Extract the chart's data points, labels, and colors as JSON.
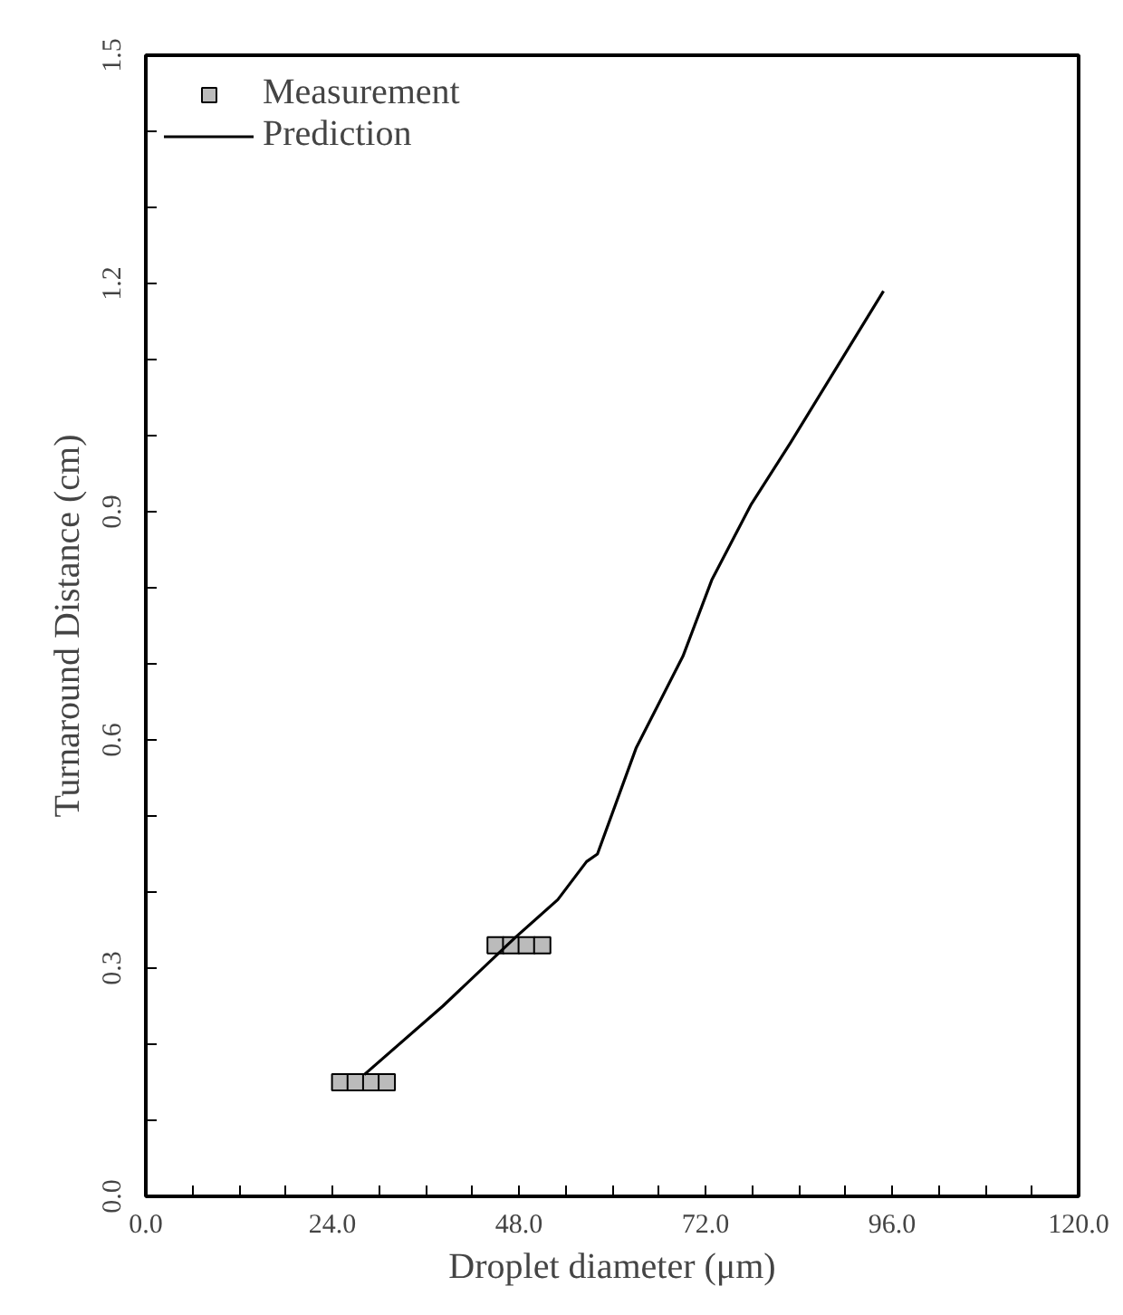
{
  "chart_data": {
    "type": "line",
    "xlabel": "Droplet diameter (μm)",
    "ylabel": "Turnaround Distance (cm)",
    "series": [
      {
        "name": "Measurement",
        "type": "scatter",
        "marker": "square",
        "color": "#000000",
        "x": [
          25,
          27,
          29,
          31,
          45,
          47,
          49,
          51
        ],
        "values": [
          0.15,
          0.15,
          0.15,
          0.15,
          0.33,
          0.33,
          0.33,
          0.33
        ]
      },
      {
        "name": "Prediction",
        "color": "#000000",
        "line_style": "solid",
        "x": [
          28.1,
          38.2,
          47.5,
          53.0,
          56.7,
          58.1,
          63.1,
          69.1,
          72.8,
          77.9,
          82.9,
          94.9
        ],
        "values": [
          0.16,
          0.25,
          0.34,
          0.39,
          0.44,
          0.45,
          0.59,
          0.71,
          0.81,
          0.91,
          0.99,
          1.19
        ]
      }
    ],
    "xlim": [
      0,
      120
    ],
    "ylim": [
      0,
      1.5
    ],
    "xticks": [
      {
        "value": 0,
        "label": "0.0"
      },
      {
        "value": 6,
        "label": null
      },
      {
        "value": 12,
        "label": null
      },
      {
        "value": 18,
        "label": null
      },
      {
        "value": 24,
        "label": "24.0"
      },
      {
        "value": 30,
        "label": null
      },
      {
        "value": 36,
        "label": null
      },
      {
        "value": 42,
        "label": null
      },
      {
        "value": 48,
        "label": "48.0"
      },
      {
        "value": 54,
        "label": null
      },
      {
        "value": 60,
        "label": null
      },
      {
        "value": 66,
        "label": null
      },
      {
        "value": 72,
        "label": "72.0"
      },
      {
        "value": 78,
        "label": null
      },
      {
        "value": 84,
        "label": null
      },
      {
        "value": 90,
        "label": null
      },
      {
        "value": 96,
        "label": "96.0"
      },
      {
        "value": 102,
        "label": null
      },
      {
        "value": 108,
        "label": null
      },
      {
        "value": 114,
        "label": null
      },
      {
        "value": 120,
        "label": "120.0"
      }
    ],
    "yticks": [
      {
        "value": 0,
        "label": "0.0"
      },
      {
        "value": 0.1,
        "label": null
      },
      {
        "value": 0.2,
        "label": null
      },
      {
        "value": 0.3,
        "label": "0.3"
      },
      {
        "value": 0.4,
        "label": null
      },
      {
        "value": 0.5,
        "label": null
      },
      {
        "value": 0.6,
        "label": "0.6"
      },
      {
        "value": 0.7,
        "label": null
      },
      {
        "value": 0.8,
        "label": null
      },
      {
        "value": 0.9,
        "label": "0.9"
      },
      {
        "value": 1.0,
        "label": null
      },
      {
        "value": 1.1,
        "label": null
      },
      {
        "value": 1.2,
        "label": "1.2"
      },
      {
        "value": 1.3,
        "label": null
      },
      {
        "value": 1.4,
        "label": null
      },
      {
        "value": 1.5,
        "label": "1.5"
      }
    ],
    "grid": false,
    "legend": "top left"
  }
}
